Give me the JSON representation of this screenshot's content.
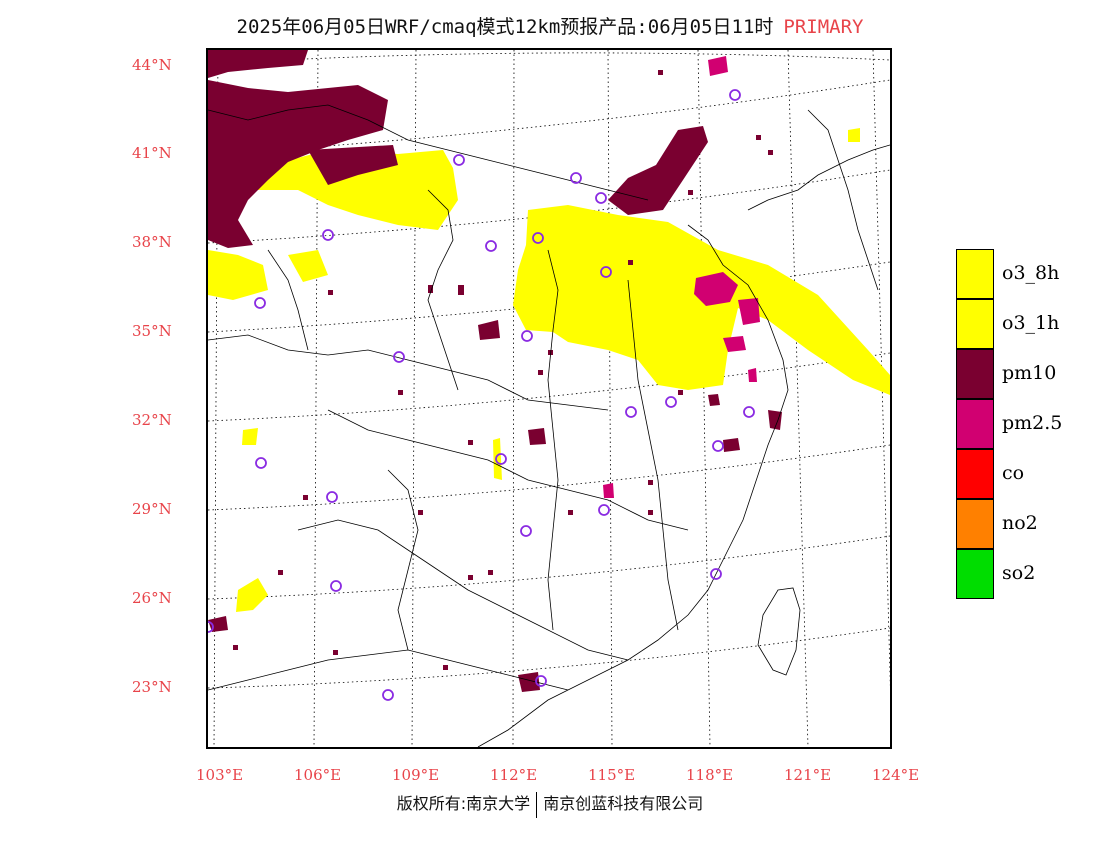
{
  "header": {
    "title": "2025年06月05日WRF/cmaq模式12km预报产品:06月05日11时",
    "tag": "PRIMARY"
  },
  "axes": {
    "lat_labels": [
      "44°N",
      "41°N",
      "38°N",
      "35°N",
      "32°N",
      "29°N",
      "26°N",
      "23°N"
    ],
    "lon_labels": [
      "103°E",
      "106°E",
      "109°E",
      "112°E",
      "115°E",
      "118°E",
      "121°E",
      "124°E"
    ]
  },
  "legend": {
    "items": [
      {
        "label": "o3_8h",
        "color": "#ffff00"
      },
      {
        "label": "o3_1h",
        "color": "#ffff00"
      },
      {
        "label": "pm10",
        "color": "#7a0030"
      },
      {
        "label": "pm2.5",
        "color": "#d10071"
      },
      {
        "label": "co",
        "color": "#ff0000"
      },
      {
        "label": "no2",
        "color": "#ff8000"
      },
      {
        "label": "so2",
        "color": "#00dd00"
      }
    ]
  },
  "footer": {
    "left": "版权所有:南京大学",
    "right": "南京创蓝科技有限公司"
  },
  "colors": {
    "accent_red": "#e8444a",
    "o3": "#ffff00",
    "pm10": "#7a0030",
    "pm25": "#d10071",
    "station_marker": "#8a2be2"
  }
}
